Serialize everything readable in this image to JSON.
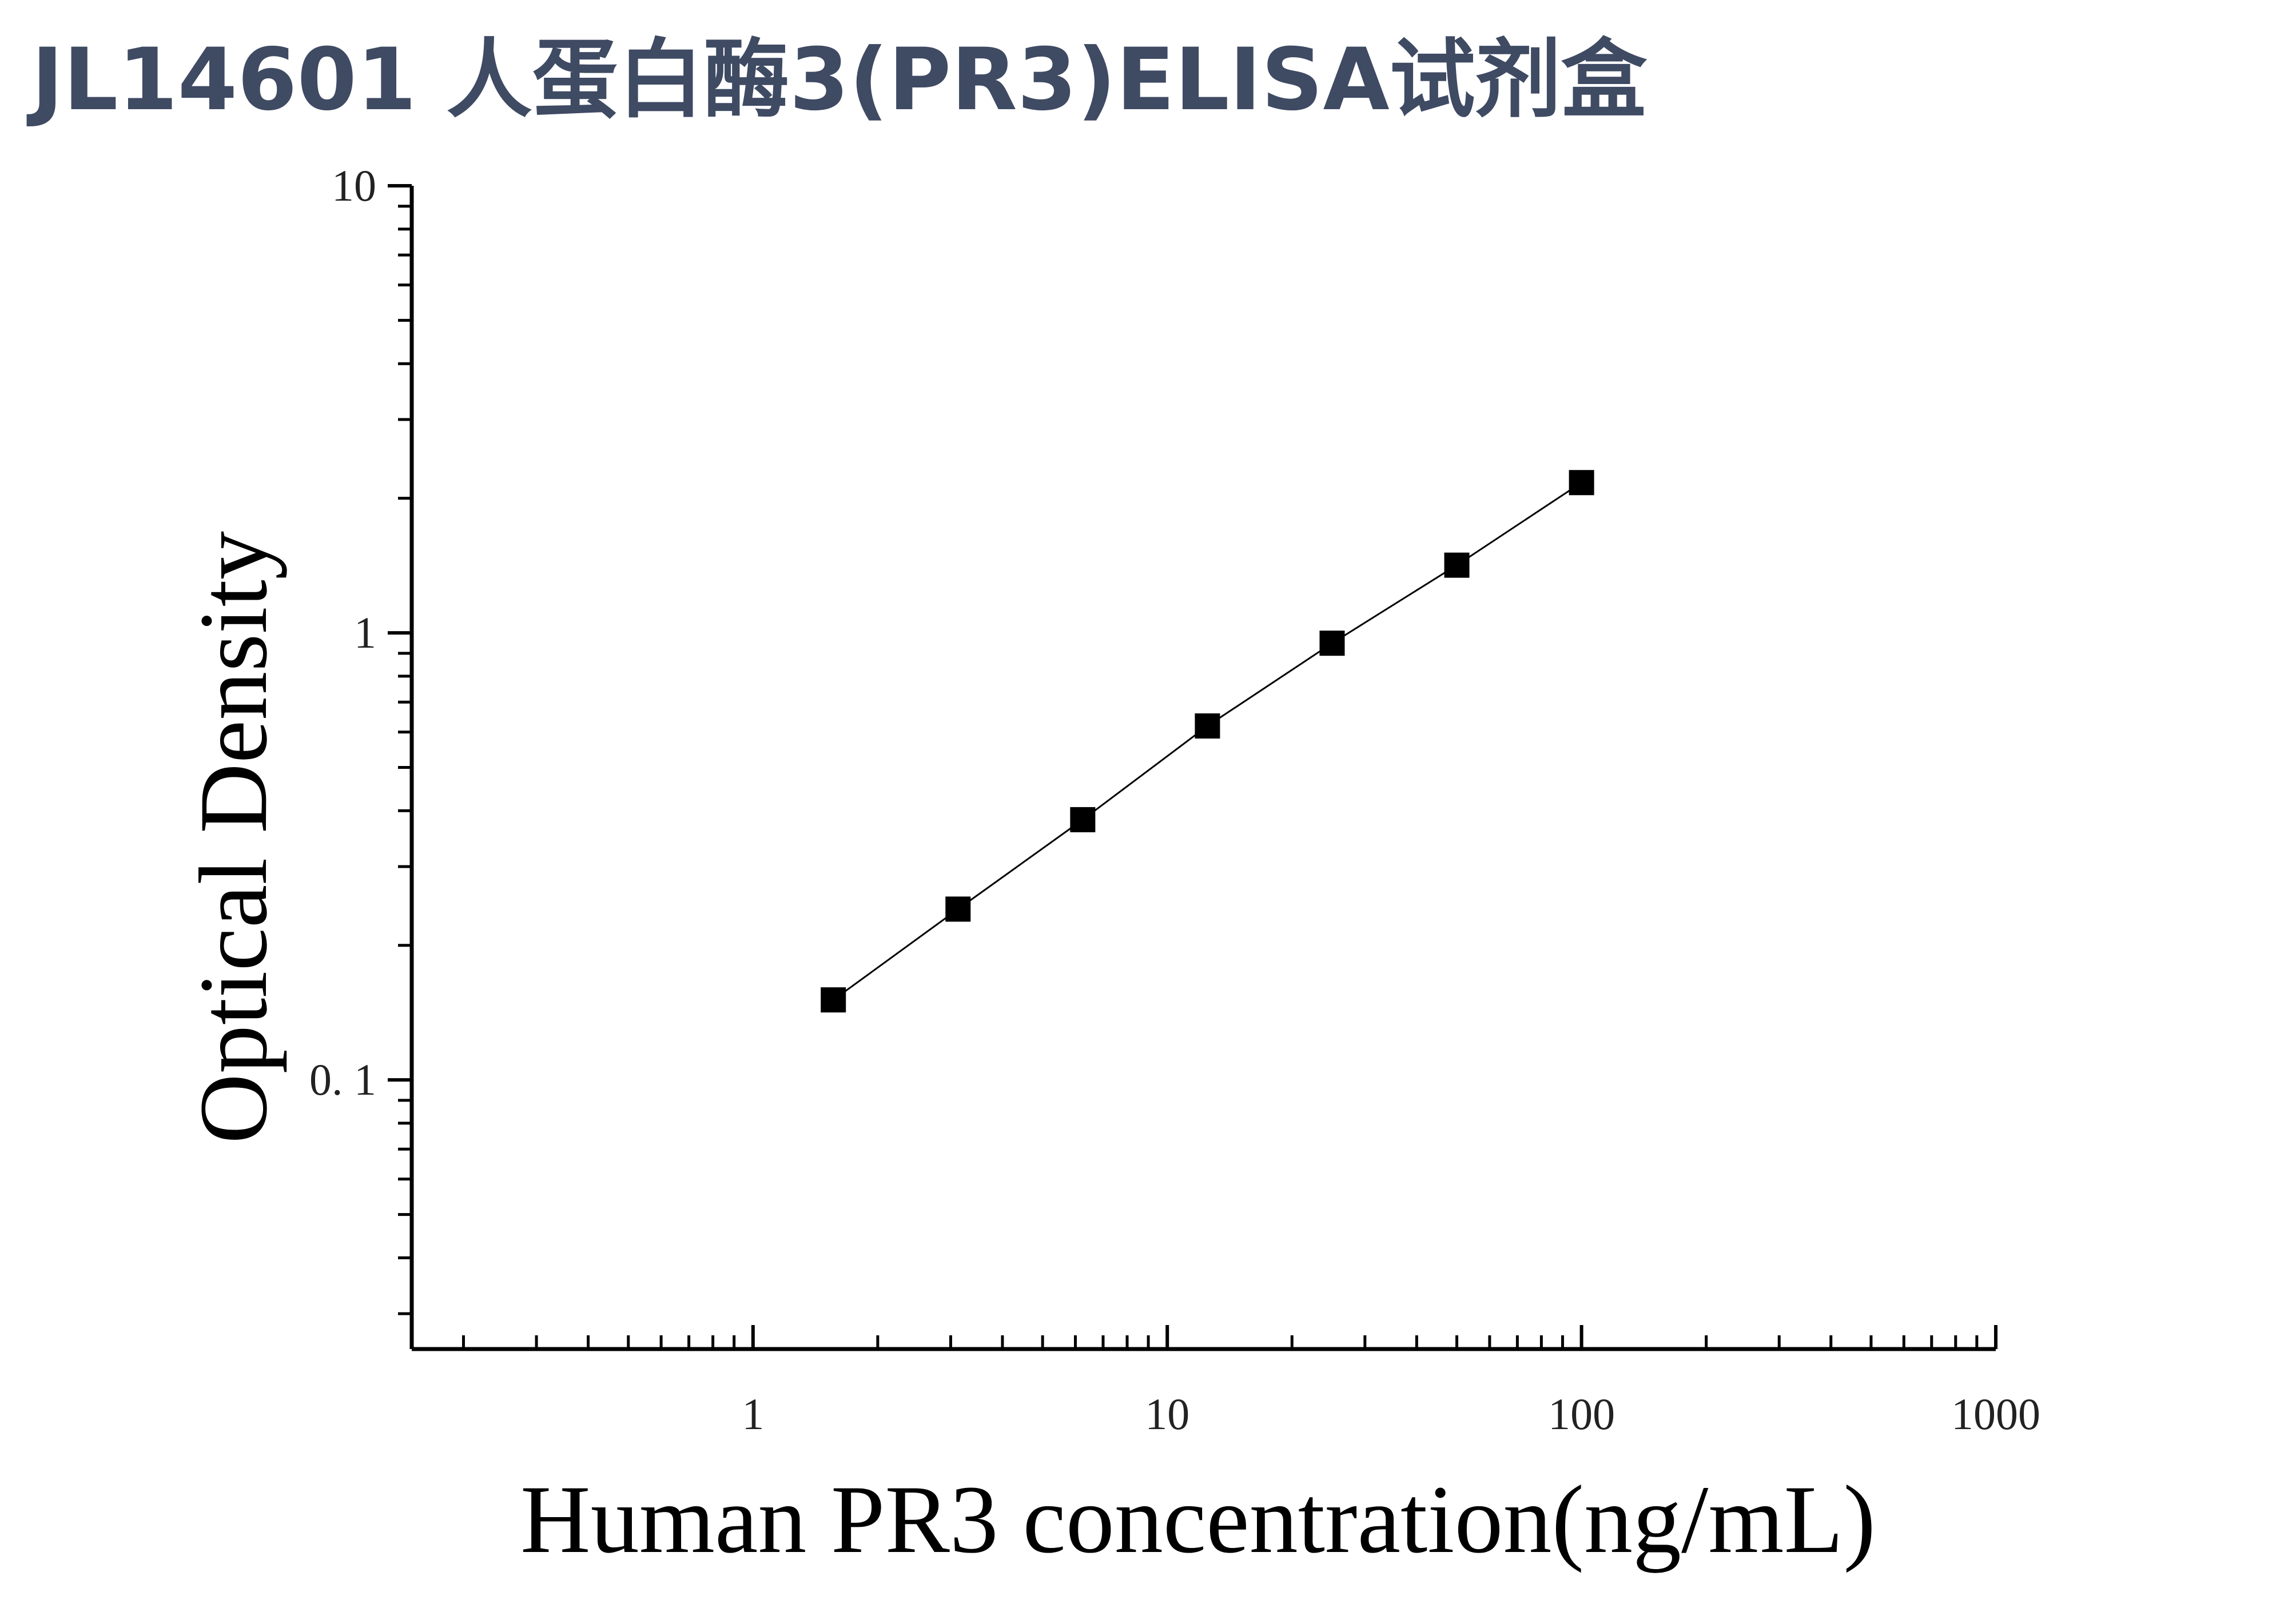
{
  "page": {
    "title": "JL14601 人蛋白酶3(PR3)ELISA试剂盒",
    "title_color": "#3f4a63"
  },
  "chart_data": {
    "type": "scatter",
    "title": "",
    "xlabel": "Human PR3 concentration(ng/mL)",
    "ylabel": "Optical Density",
    "x_scale": "log",
    "y_scale": "log",
    "xlim": [
      0.15,
      1000
    ],
    "ylim": [
      0.025,
      10
    ],
    "x_ticks": [
      {
        "value": 1,
        "label": "1"
      },
      {
        "value": 10,
        "label": "10"
      },
      {
        "value": 100,
        "label": "100"
      },
      {
        "value": 1000,
        "label": "1000"
      }
    ],
    "y_ticks": [
      {
        "value": 0.1,
        "label": "0. 1"
      },
      {
        "value": 1,
        "label": "1"
      },
      {
        "value": 10,
        "label": "10"
      }
    ],
    "grid": false,
    "legend": "none",
    "marker": "square",
    "connect_points": true,
    "color": "#000000",
    "series": [
      {
        "x": [
          1.5625,
          3.125,
          6.25,
          12.5,
          25,
          50,
          100
        ],
        "y": [
          0.151,
          0.241,
          0.382,
          0.619,
          0.948,
          1.417,
          2.168
        ]
      }
    ]
  }
}
